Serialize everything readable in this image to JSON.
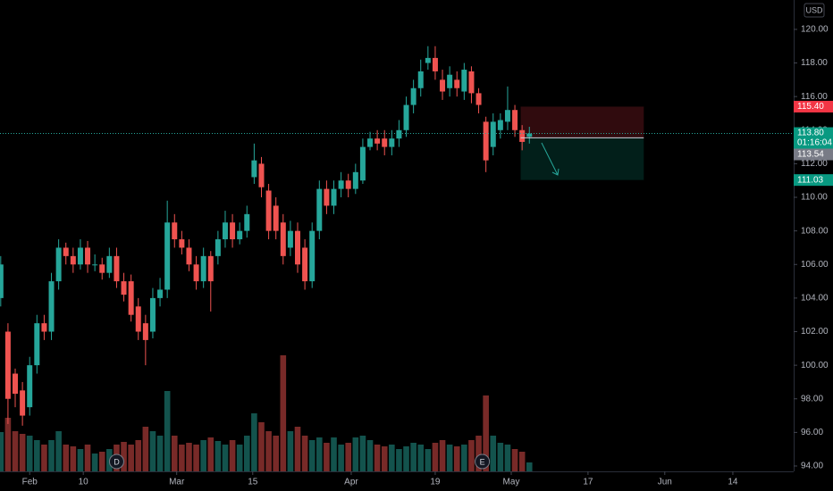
{
  "chart_data": {
    "type": "candlestick",
    "currency": "USD",
    "open": [
      104,
      102,
      99.5,
      98.5,
      97.5,
      100,
      102.5,
      102,
      105,
      107,
      106.5,
      106,
      107,
      106,
      106,
      105.5,
      106.5,
      105,
      105,
      103.5,
      102.5,
      102,
      104,
      104.5,
      108.5,
      107.5,
      107,
      106,
      105,
      106.5,
      106.5,
      107.5,
      108.5,
      107.5,
      108,
      111.2,
      112,
      110.4,
      109.5,
      108.5,
      107,
      108,
      107,
      105,
      108,
      110.5,
      109.5,
      110.5,
      111,
      110.5,
      111,
      113,
      113.5,
      113.5,
      113,
      113.5,
      114,
      115.5,
      116.5,
      118,
      118.3,
      117,
      116.5,
      117,
      116.3,
      117.5,
      116.2,
      114.5,
      113,
      114,
      114.5,
      115.2,
      114,
      113.6
    ],
    "high": [
      106.5,
      102.5,
      99.8,
      99,
      100.5,
      103,
      103,
      105.5,
      107.5,
      107.3,
      107,
      107.5,
      107.4,
      106.6,
      106.4,
      107,
      107,
      105.5,
      105.4,
      104,
      103,
      104.6,
      105.2,
      109.8,
      109,
      108,
      107.5,
      106.5,
      107,
      106.8,
      108,
      109.2,
      109,
      108.5,
      109.5,
      113.2,
      112.4,
      110.8,
      110,
      109,
      108.6,
      108.5,
      107.5,
      108.5,
      111,
      111,
      111,
      111.5,
      111.4,
      112,
      113.5,
      113.9,
      114,
      114,
      114,
      114.6,
      116,
      117,
      118.2,
      119,
      119,
      117.6,
      117.8,
      117.5,
      118,
      117.8,
      116.5,
      114.8,
      115,
      115,
      116.6,
      115.5,
      114.3,
      114.2
    ],
    "low": [
      103.5,
      96.5,
      97.5,
      96.4,
      97,
      99.5,
      101.5,
      101.5,
      104.5,
      106,
      105.5,
      105.7,
      105.5,
      105.6,
      105.1,
      105.2,
      104.6,
      103.8,
      102.6,
      101.5,
      100,
      101.6,
      103.5,
      104,
      107,
      106.6,
      105.6,
      104.5,
      104.6,
      103.2,
      106,
      107,
      107,
      107.2,
      107.6,
      110.8,
      110,
      107.5,
      107.5,
      106,
      106.5,
      105.5,
      104.5,
      104.6,
      107.5,
      109,
      109,
      110,
      110,
      110.2,
      110.8,
      112.8,
      112.8,
      112.5,
      112.5,
      113,
      113.6,
      115,
      116,
      117.6,
      117,
      115.8,
      116,
      116,
      115.8,
      115.6,
      115,
      111.5,
      112.5,
      113.5,
      114,
      113.6,
      112.8,
      113.2
    ],
    "close": [
      106,
      98,
      98.3,
      97,
      100,
      102.5,
      102,
      105,
      107,
      106.5,
      106,
      107,
      106,
      106,
      105.5,
      106.5,
      105,
      104.2,
      103,
      102,
      101.5,
      104,
      104.5,
      108.5,
      107.5,
      107,
      106,
      105,
      106.5,
      105,
      107.5,
      108.5,
      107.5,
      108,
      109,
      112.2,
      110.6,
      108,
      108,
      106.5,
      108,
      106,
      105,
      108,
      110.5,
      109.5,
      110.5,
      111,
      110.5,
      111.5,
      113,
      113.5,
      113.2,
      113,
      113.5,
      114,
      115.5,
      116.5,
      117.5,
      118.3,
      117.5,
      116.3,
      117.3,
      116.5,
      117.6,
      116.2,
      115.5,
      112.2,
      114.5,
      114.6,
      115.2,
      114,
      113.3,
      113.8
    ],
    "volume": [
      44,
      60,
      45,
      42,
      40,
      35,
      30,
      35,
      45,
      30,
      28,
      25,
      30,
      20,
      22,
      25,
      30,
      33,
      30,
      35,
      50,
      45,
      40,
      90,
      40,
      30,
      32,
      30,
      35,
      38,
      34,
      30,
      35,
      30,
      40,
      65,
      55,
      45,
      40,
      130,
      45,
      50,
      40,
      35,
      38,
      32,
      38,
      30,
      32,
      38,
      40,
      35,
      30,
      28,
      30,
      25,
      28,
      32,
      30,
      25,
      32,
      35,
      30,
      28,
      30,
      35,
      40,
      85,
      40,
      32,
      30,
      25,
      22,
      10
    ],
    "vlim": [
      0,
      140
    ],
    "up_color": "#26a69a",
    "down_color": "#ef5350",
    "xlim": [
      -0.1,
      109.5
    ],
    "xticks": [
      {
        "value": 4,
        "label": "Feb"
      },
      {
        "value": 11.4,
        "label": "10"
      },
      {
        "value": 24.3,
        "label": "Mar"
      },
      {
        "value": 34.8,
        "label": "15"
      },
      {
        "value": 48.4,
        "label": "Apr"
      },
      {
        "value": 60,
        "label": "19"
      },
      {
        "value": 70.5,
        "label": "May"
      },
      {
        "value": 81.1,
        "label": "17"
      },
      {
        "value": 91.7,
        "label": "Jun"
      },
      {
        "value": 101.1,
        "label": "14"
      }
    ],
    "ylim": [
      93.68,
      121.75
    ],
    "yticks": [
      {
        "value": 94,
        "label": "94.00"
      },
      {
        "value": 96,
        "label": "96.00"
      },
      {
        "value": 98,
        "label": "98.00"
      },
      {
        "value": 100,
        "label": "100.00"
      },
      {
        "value": 102,
        "label": "102.00"
      },
      {
        "value": 104,
        "label": "104.00"
      },
      {
        "value": 106,
        "label": "106.00"
      },
      {
        "value": 108,
        "label": "108.00"
      },
      {
        "value": 110,
        "label": "110.00"
      },
      {
        "value": 112,
        "label": "112.00"
      },
      {
        "value": 114,
        "label": "114.00"
      },
      {
        "value": 116,
        "label": "116.00"
      },
      {
        "value": 118,
        "label": "118.00"
      },
      {
        "value": 120,
        "label": "120.00"
      }
    ],
    "last": {
      "value": 113.8,
      "label": "113.80",
      "countdown": "01:16:04"
    },
    "position": {
      "stop": {
        "value": 115.4,
        "label": "115.40"
      },
      "entry": {
        "value": 113.54,
        "label": "113.54"
      },
      "target": {
        "value": 111.03,
        "label": "111.03"
      }
    },
    "events": [
      {
        "label": "D"
      },
      {
        "label": "E"
      }
    ]
  }
}
